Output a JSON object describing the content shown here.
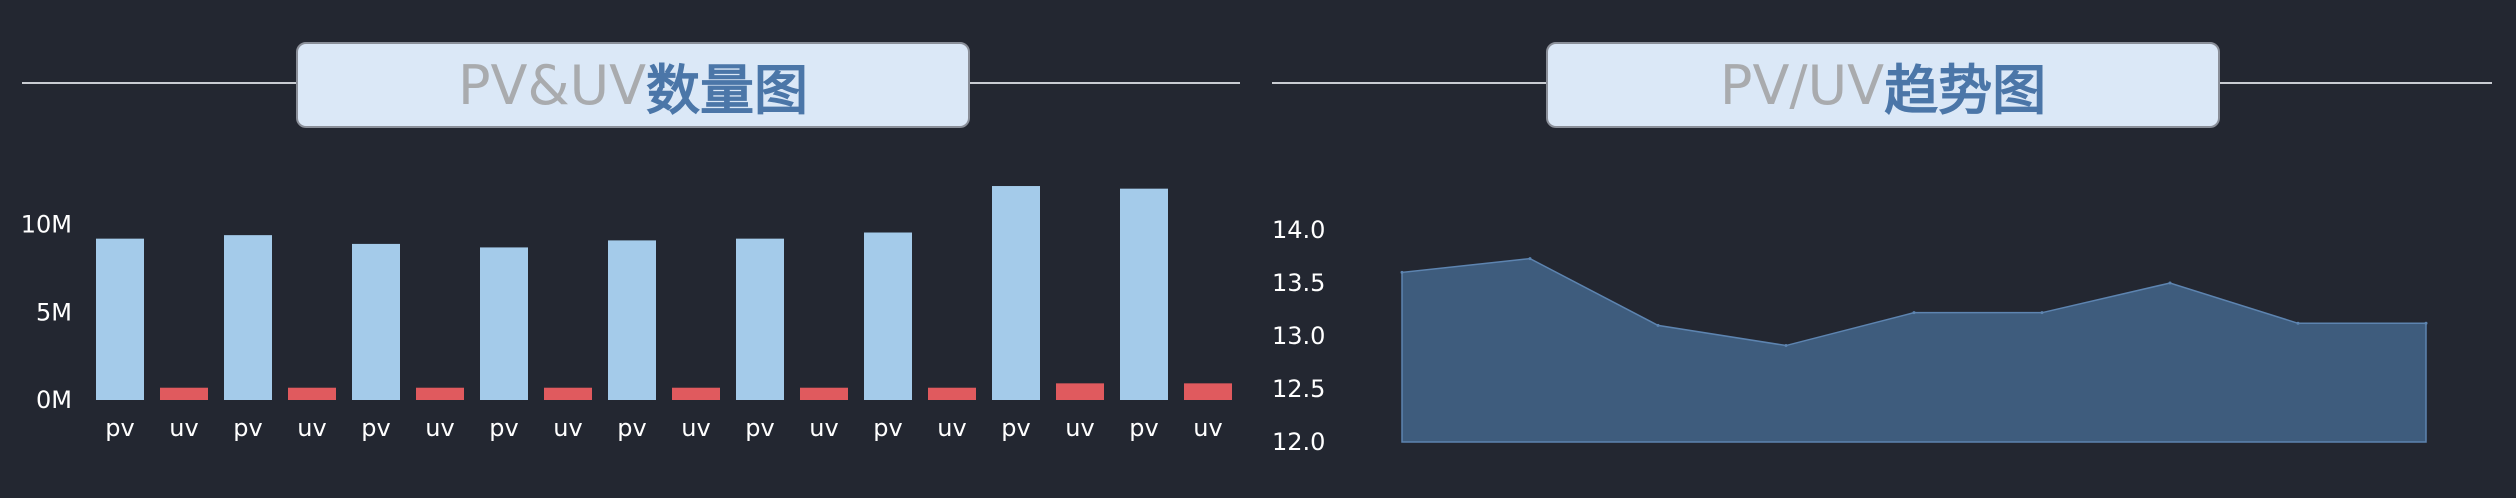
{
  "charts": {
    "left": {
      "title_grey": "PV&UV",
      "title_blue": "数量图"
    },
    "right": {
      "title_grey": "PV/UV",
      "title_blue": "趋势图"
    }
  },
  "colors": {
    "background": "#232731",
    "pv": "#a4cbea",
    "uv": "#e05a5e",
    "area_fill": "#3e5c7d",
    "area_stroke": "#5d84b0",
    "axis_text": "#ffffff"
  },
  "chart_data": [
    {
      "type": "bar",
      "title": "PV&UV数量图",
      "categories": [
        "pv",
        "uv",
        "pv",
        "uv",
        "pv",
        "uv",
        "pv",
        "uv",
        "pv",
        "uv",
        "pv",
        "uv",
        "pv",
        "uv",
        "pv",
        "uv",
        "pv",
        "uv"
      ],
      "values": [
        9.2,
        0.7,
        9.4,
        0.7,
        8.9,
        0.7,
        8.7,
        0.7,
        9.1,
        0.7,
        9.2,
        0.7,
        9.55,
        0.7,
        12.2,
        0.95,
        12.05,
        0.95
      ],
      "value_unit": "M",
      "yticks": [
        "0M",
        "5M",
        "10M"
      ],
      "ylim": [
        0,
        13
      ],
      "grid": false
    },
    {
      "type": "area",
      "title": "PV/UV趋势图",
      "values": [
        13.6,
        13.73,
        13.1,
        12.91,
        13.22,
        13.22,
        13.5,
        13.12,
        13.12
      ],
      "yticks": [
        "12.0",
        "12.5",
        "13.0",
        "13.5",
        "14.0"
      ],
      "ylim": [
        12.0,
        14.0
      ],
      "grid": false
    }
  ]
}
